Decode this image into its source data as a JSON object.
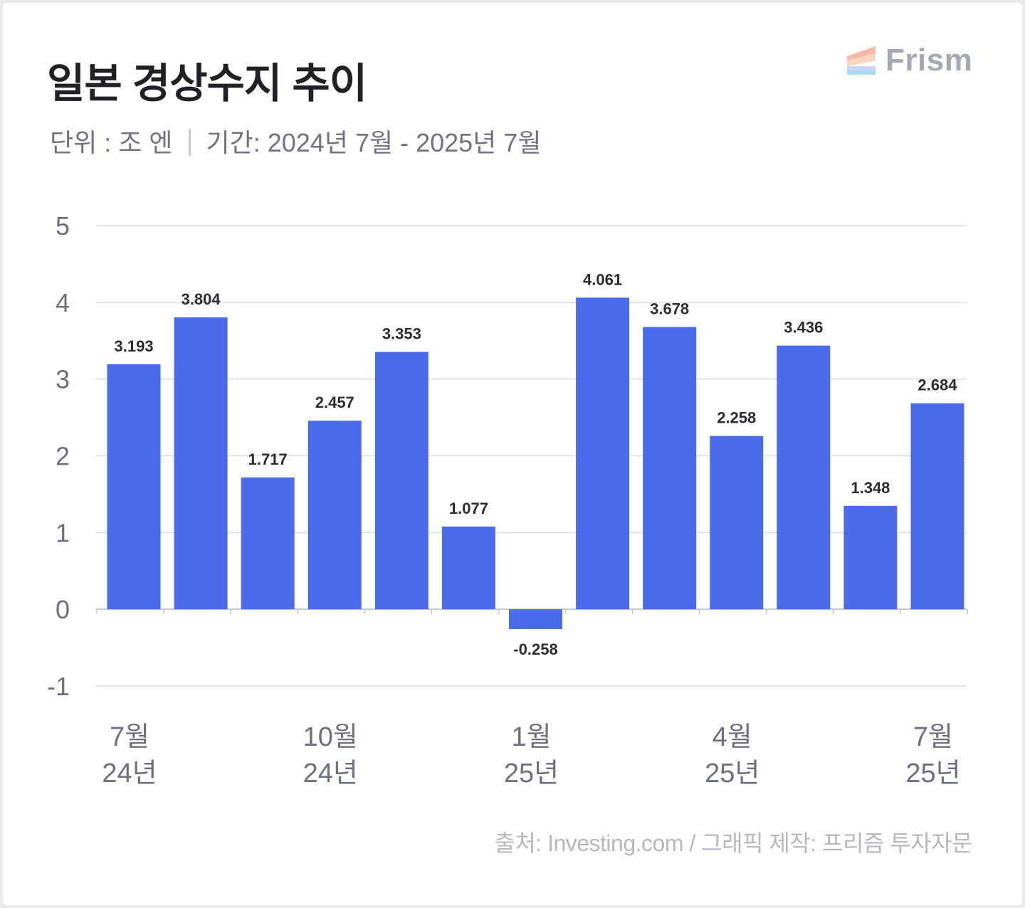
{
  "title": "일본 경상수지 추이",
  "subtitle": {
    "unit": "단위 : 조 엔",
    "period": "기간: 2024년 7월 - 2025년 7월"
  },
  "brand": {
    "logo_text": "Frism",
    "icon": "frism-logo-icon",
    "logo_colors": [
      "#f5b7a6",
      "#f8d6bd",
      "#c9d3f6",
      "#a9d8f2"
    ]
  },
  "source": "출처: Investing.com / 그래픽 제작: 프리즘 투자자문",
  "colors": {
    "bar": "#4a6ceb",
    "grid": "#d9dbe0",
    "axis_text": "#6c7080",
    "label_text": "#2b2d33"
  },
  "chart_data": {
    "type": "bar",
    "title": "일본 경상수지 추이",
    "xlabel": "",
    "ylabel": "",
    "ylim": [
      -1,
      5
    ],
    "yticks": [
      5,
      4,
      3,
      2,
      1,
      0,
      -1
    ],
    "grid": true,
    "values": [
      3.193,
      3.804,
      1.717,
      2.457,
      3.353,
      1.077,
      -0.258,
      4.061,
      3.678,
      2.258,
      3.436,
      1.348,
      2.684
    ],
    "data_labels": [
      "3.193",
      "3.804",
      "1.717",
      "2.457",
      "3.353",
      "1.077",
      "-0.258",
      "4.061",
      "3.678",
      "2.258",
      "3.436",
      "1.348",
      "2.684"
    ],
    "x_tick_labels": [
      {
        "index": 0,
        "month": "7월",
        "year": "24년"
      },
      {
        "index": 3,
        "month": "10월",
        "year": "24년"
      },
      {
        "index": 6,
        "month": "1월",
        "year": "25년"
      },
      {
        "index": 9,
        "month": "4월",
        "year": "25년"
      },
      {
        "index": 12,
        "month": "7월",
        "year": "25년"
      }
    ]
  }
}
